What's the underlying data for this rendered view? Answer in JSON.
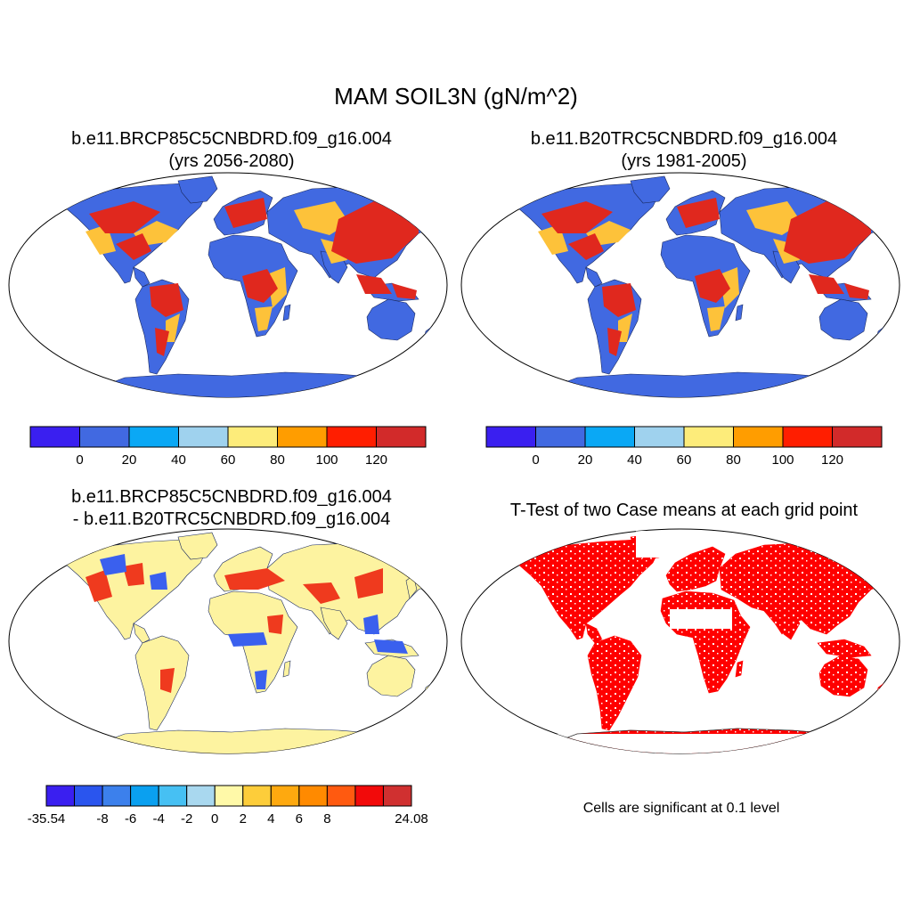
{
  "title": "MAM SOIL3N (gN/m^2)",
  "panels": [
    {
      "id": "case1",
      "title_line1": "b.e11.BRCP85C5CNBDRD.f09_g16.004",
      "title_line2": "(yrs 2056-2080)"
    },
    {
      "id": "case2",
      "title_line1": "b.e11.B20TRC5CNBDRD.f09_g16.004",
      "title_line2": "(yrs 1981-2005)"
    },
    {
      "id": "difference",
      "title_line1": "b.e11.BRCP85C5CNBDRD.f09_g16.004",
      "title_line2": "- b.e11.B20TRC5CNBDRD.f09_g16.004"
    },
    {
      "id": "ttest",
      "title_line1": "T-Test of two Case means at each grid point",
      "title_line2": ""
    }
  ],
  "colorbars": {
    "mean": {
      "colors": [
        "#3a1ff0",
        "#4169e1",
        "#0aa8f5",
        "#9fd2ee",
        "#fdec7a",
        "#ff9d00",
        "#ff1e00",
        "#d22a2a"
      ],
      "labels": [
        "0",
        "20",
        "40",
        "60",
        "80",
        "100",
        "120"
      ]
    },
    "diff": {
      "colors": [
        "#3a1ff0",
        "#2a55ee",
        "#3c80ec",
        "#0aa0f0",
        "#46c0f3",
        "#a9d8ef",
        "#fff9a8",
        "#fdcd3a",
        "#fea90f",
        "#ff8a00",
        "#ff5a10",
        "#f20a0a",
        "#d03030"
      ],
      "labels": [
        "-35.54",
        "-8",
        "-6",
        "-4",
        "-2",
        "0",
        "2",
        "4",
        "6",
        "8",
        "24.08"
      ]
    }
  },
  "legend_colors": {
    "ocean": "#ffffff",
    "land_base_mean": "#4169e1",
    "land_base_diff": "#fdf3a0",
    "significant": "#ff0000"
  },
  "note": "Cells are significant at 0.1 level"
}
